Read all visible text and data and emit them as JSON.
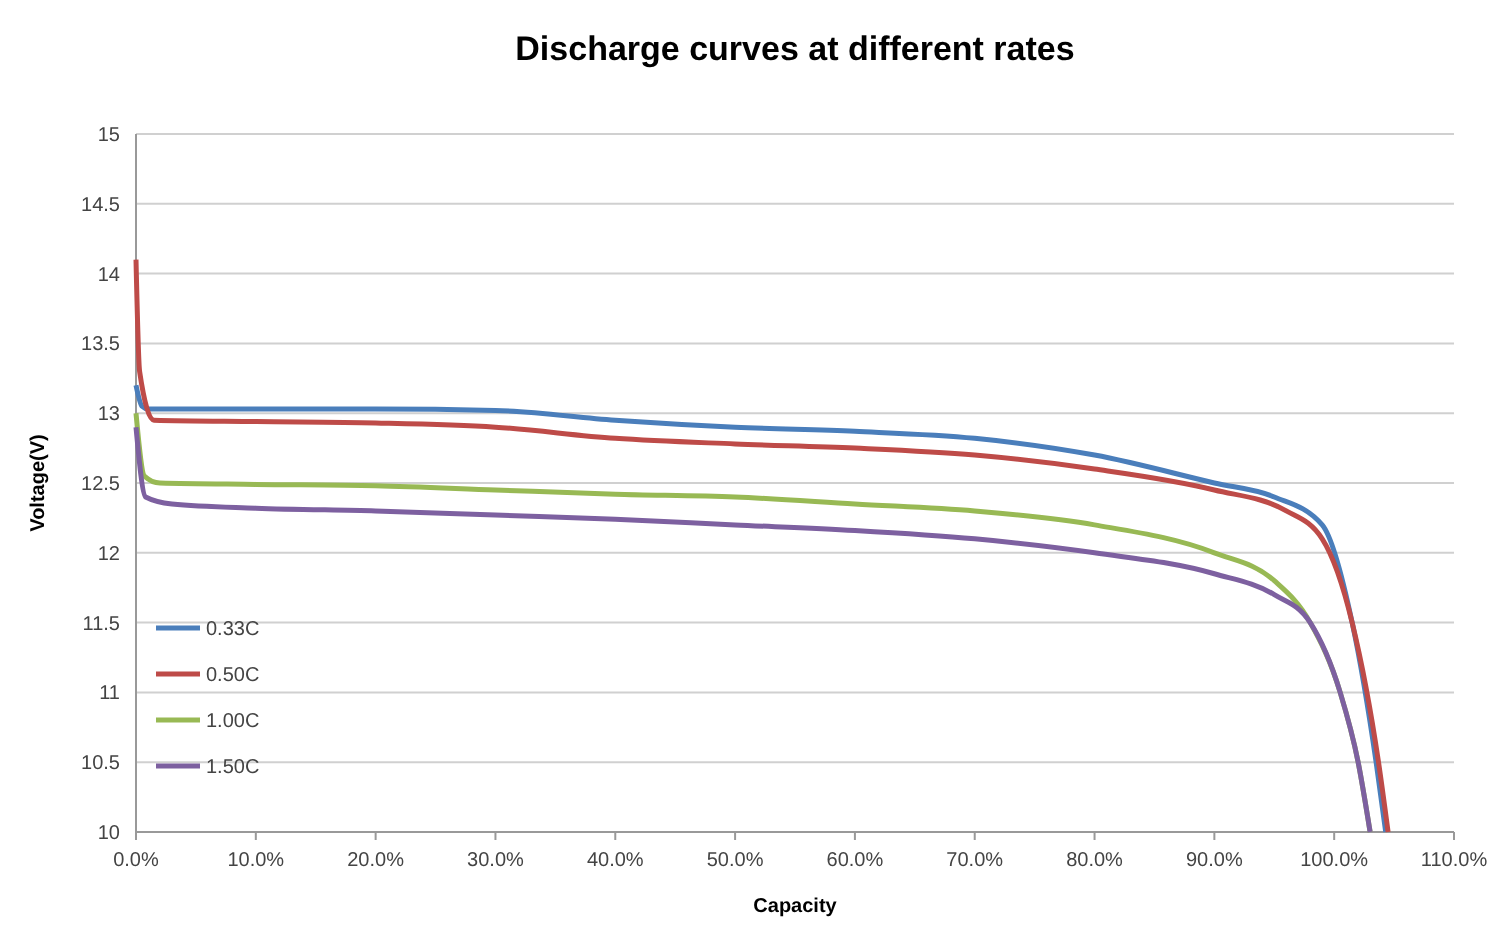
{
  "chart_data": {
    "type": "line",
    "title": "Discharge curves at different rates",
    "xlabel": "Capacity",
    "ylabel": "Voltage(V)",
    "xlim": [
      0,
      110
    ],
    "xticks": [
      {
        "value": 0,
        "label": "0.0%"
      },
      {
        "value": 10,
        "label": "10.0%"
      },
      {
        "value": 20,
        "label": "20.0%"
      },
      {
        "value": 30,
        "label": "30.0%"
      },
      {
        "value": 40,
        "label": "40.0%"
      },
      {
        "value": 50,
        "label": "50.0%"
      },
      {
        "value": 60,
        "label": "60.0%"
      },
      {
        "value": 70,
        "label": "70.0%"
      },
      {
        "value": 80,
        "label": "80.0%"
      },
      {
        "value": 90,
        "label": "90.0%"
      },
      {
        "value": 100,
        "label": "100.0%"
      },
      {
        "value": 110,
        "label": "110.0%"
      }
    ],
    "ylim": [
      10,
      15
    ],
    "yticks": [
      10,
      10.5,
      11,
      11.5,
      12,
      12.5,
      13,
      13.5,
      14,
      14.5,
      15
    ],
    "grid": "y",
    "legend": "bottom left",
    "marker": "none",
    "line_style": "solid",
    "series": [
      {
        "name": "0.33C",
        "color": "#4a7ebb",
        "x": [
          0,
          0.5,
          1,
          10,
          20,
          30,
          40,
          50,
          60,
          70,
          80,
          90,
          95,
          99,
          101.5,
          103.5,
          104.3
        ],
        "values": [
          13.2,
          13.05,
          13.03,
          13.03,
          13.03,
          13.02,
          12.95,
          12.9,
          12.87,
          12.82,
          12.7,
          12.5,
          12.4,
          12.2,
          11.5,
          10.5,
          10
        ]
      },
      {
        "name": "0.50C",
        "color": "#be4b48",
        "x": [
          0,
          0.3,
          1.5,
          10,
          20,
          30,
          40,
          50,
          60,
          70,
          80,
          90,
          96,
          99,
          101.5,
          103.7,
          104.5
        ],
        "values": [
          14.1,
          13.3,
          12.95,
          12.94,
          12.93,
          12.9,
          12.82,
          12.78,
          12.75,
          12.7,
          12.6,
          12.45,
          12.3,
          12.1,
          11.5,
          10.5,
          10
        ]
      },
      {
        "name": "1.00C",
        "color": "#98b954",
        "x": [
          0,
          0.7,
          2,
          10,
          20,
          30,
          40,
          50,
          60,
          70,
          80,
          90,
          95,
          98,
          100.5,
          102,
          103
        ],
        "values": [
          13.0,
          12.55,
          12.5,
          12.49,
          12.48,
          12.45,
          12.42,
          12.4,
          12.35,
          12.3,
          12.2,
          12.0,
          11.8,
          11.5,
          11,
          10.5,
          10
        ]
      },
      {
        "name": "1.50C",
        "color": "#7d60a0",
        "x": [
          0,
          0.8,
          3,
          10,
          20,
          30,
          40,
          50,
          60,
          70,
          80,
          90,
          95,
          98,
          100.5,
          102,
          103
        ],
        "values": [
          12.9,
          12.4,
          12.35,
          12.32,
          12.3,
          12.27,
          12.24,
          12.2,
          12.16,
          12.1,
          12.0,
          11.85,
          11.7,
          11.5,
          11,
          10.5,
          10
        ]
      }
    ]
  }
}
